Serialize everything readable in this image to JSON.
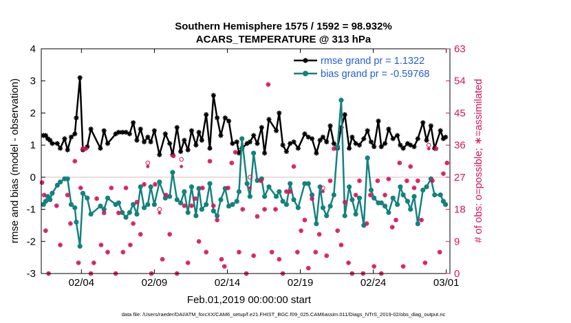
{
  "chart_data": {
    "type": "line",
    "title": "Southern Hemisphere 1575 / 1592 = 98.932%",
    "subtitle": "ACARS_TEMPERATURE @ 313 hPa",
    "xlabel": "Feb.01,2019 00:00:00 start",
    "ylabel": "rmse and bias (model - observation)",
    "ylabel_right": "# of obs: o=possible; ∗=assimilated",
    "footnote": "data file: /Users/raeder/DAI/ATM_forcXX/CAM6_setup/f.e21.FHIST_BGC.f09_025.CAM6assim.011/Diags_NTrS_2019-02/obs_diag_output.nc",
    "xlim": [
      1,
      29
    ],
    "ylim": [
      -3,
      4
    ],
    "ylim_right": [
      0,
      63
    ],
    "x_ticks": [
      3.75,
      8.75,
      13.75,
      18.75,
      23.75,
      28.75
    ],
    "x_tick_labels": [
      "02/04",
      "02/09",
      "02/14",
      "02/19",
      "02/24",
      "03/01"
    ],
    "y_ticks": [
      -3,
      -2,
      -1,
      0,
      1,
      2,
      3,
      4
    ],
    "y_tick_labels": [
      "-3",
      "-2",
      "-1",
      "0",
      "1",
      "2",
      "3",
      "4"
    ],
    "y_right_ticks": [
      0,
      9,
      18,
      27,
      36,
      45,
      54,
      63
    ],
    "y_right_tick_labels": [
      "0",
      "9",
      "18",
      "27",
      "36",
      "45",
      "54",
      "63"
    ],
    "colors": {
      "rmse": "#000000",
      "bias": "#13827f",
      "obs": "#d4145a",
      "zero_line": "#e0b8b8"
    },
    "series": [
      {
        "name": "rmse grand pr = 1.1322",
        "marker": "asterisk",
        "x": [
          1.15,
          1.3,
          1.45,
          1.6,
          1.75,
          2.1,
          2.3,
          2.6,
          2.8,
          3.05,
          3.3,
          3.4,
          3.65,
          3.85,
          4.15,
          4.4,
          5.05,
          5.3,
          5.55,
          6.1,
          6.3,
          6.55,
          6.8,
          7.05,
          7.3,
          7.55,
          7.8,
          8.05,
          8.3,
          8.5,
          8.75,
          9.1,
          9.5,
          9.8,
          10.0,
          10.3,
          10.55,
          10.8,
          11.05,
          11.3,
          11.6,
          11.8,
          12.0,
          12.3,
          12.55,
          12.8,
          13.05,
          13.3,
          13.6,
          13.85,
          14.1,
          14.4,
          14.55,
          14.75,
          15.1,
          15.3,
          15.55,
          15.8,
          16.1,
          16.3,
          16.6,
          17.1,
          17.3,
          17.55,
          17.8,
          18.05,
          18.3,
          18.6,
          19.05,
          19.3,
          19.55,
          19.85,
          20.1,
          20.3,
          20.55,
          20.8,
          21.05,
          21.3,
          21.55,
          21.8,
          22.1,
          22.3,
          22.55,
          22.8,
          23.1,
          23.35,
          23.6,
          23.8,
          24.1,
          24.3,
          24.55,
          24.8,
          25.1,
          25.4,
          25.6,
          25.8,
          26.1,
          26.3,
          26.55,
          26.8,
          27.15,
          27.4,
          27.7,
          27.95,
          28.35,
          28.55,
          28.7
        ],
        "y": [
          1.3,
          1.3,
          1.2,
          1.15,
          1.05,
          1.05,
          0.9,
          1.2,
          0.85,
          1.25,
          1.35,
          1.85,
          3.1,
          0.85,
          0.95,
          1.5,
          0.9,
          1.45,
          1.05,
          1.35,
          1.4,
          1.4,
          1.4,
          1.35,
          1.7,
          1.15,
          1.5,
          1.1,
          1.25,
          1.1,
          1.45,
          0.7,
          1.35,
          1.05,
          0.7,
          1.55,
          0.8,
          1.15,
          0.85,
          1.45,
          1.0,
          1.4,
          1.15,
          1.95,
          0.9,
          2.55,
          1.85,
          1.3,
          1.85,
          1.75,
          1.05,
          1.1,
          0.75,
          0.9,
          1.05,
          1.1,
          1.3,
          1.05,
          1.55,
          0.75,
          1.8,
          1.45,
          2.0,
          1.0,
          0.8,
          1.05,
          1.1,
          0.9,
          1.35,
          1.25,
          1.2,
          0.75,
          1.15,
          1.25,
          1.1,
          1.6,
          1.05,
          0.9,
          1.55,
          1.95,
          0.9,
          1.25,
          1.05,
          1.0,
          1.2,
          1.45,
          1.1,
          0.95,
          1.75,
          0.95,
          1.05,
          1.5,
          1.2,
          1.3,
          1.0,
          0.9,
          1.05,
          1.0,
          0.95,
          1.2,
          1.7,
          1.15,
          1.6,
          0.9,
          1.45,
          1.2,
          1.25
        ]
      },
      {
        "name": "bias grand pr = -0.59768",
        "marker": "dot",
        "x": [
          1.15,
          1.3,
          1.45,
          1.6,
          1.75,
          2.1,
          2.3,
          2.6,
          2.8,
          3.05,
          3.3,
          3.4,
          3.65,
          3.85,
          4.15,
          4.4,
          5.05,
          5.3,
          5.55,
          6.1,
          6.3,
          6.55,
          6.8,
          7.05,
          7.3,
          7.55,
          7.8,
          8.05,
          8.3,
          8.5,
          8.75,
          9.1,
          9.5,
          9.8,
          10.0,
          10.3,
          10.55,
          10.8,
          11.05,
          11.3,
          11.6,
          11.8,
          12.0,
          12.3,
          12.55,
          12.8,
          13.05,
          13.3,
          13.6,
          13.85,
          14.1,
          14.4,
          14.55,
          14.75,
          15.1,
          15.3,
          15.55,
          15.8,
          16.1,
          16.3,
          16.6,
          17.1,
          17.3,
          17.55,
          17.8,
          18.05,
          18.3,
          18.6,
          19.05,
          19.3,
          19.55,
          19.85,
          20.1,
          20.3,
          20.55,
          20.8,
          21.05,
          21.3,
          21.55,
          21.8,
          22.1,
          22.3,
          22.55,
          22.8,
          23.1,
          23.35,
          23.6,
          23.8,
          24.1,
          24.3,
          24.55,
          24.8,
          25.1,
          25.4,
          25.6,
          25.8,
          26.1,
          26.3,
          26.55,
          26.8,
          27.15,
          27.4,
          27.7,
          27.95,
          28.35,
          28.55,
          28.7
        ],
        "y": [
          -0.85,
          -0.75,
          -0.6,
          -0.7,
          -0.5,
          -0.25,
          -0.15,
          -0.05,
          -0.05,
          -0.85,
          -0.95,
          -1.4,
          -2.15,
          -0.5,
          -0.65,
          -1.15,
          -0.9,
          -1.0,
          -0.65,
          -0.85,
          -0.8,
          -1.1,
          -1.25,
          -1.1,
          -0.85,
          -1.15,
          -0.3,
          -0.95,
          -0.85,
          -0.3,
          -0.85,
          -0.15,
          -0.65,
          -0.6,
          0.15,
          -0.7,
          -0.8,
          -0.45,
          -1.1,
          -0.3,
          -1.2,
          -0.35,
          -1.0,
          -0.85,
          -0.2,
          -1.05,
          -1.2,
          -0.7,
          -0.35,
          -0.9,
          -0.85,
          -0.75,
          -0.45,
          1.2,
          -0.2,
          -0.6,
          0.75,
          -0.1,
          -0.05,
          -0.6,
          -0.3,
          -0.6,
          -0.45,
          -0.75,
          -0.85,
          -0.2,
          -0.7,
          -0.95,
          -0.2,
          -0.2,
          -0.55,
          -1.45,
          -0.3,
          -0.95,
          -1.2,
          -0.9,
          -0.55,
          0.95,
          2.4,
          -1.2,
          -0.3,
          -0.7,
          -1.15,
          -0.65,
          -1.5,
          0.6,
          -0.4,
          -0.65,
          -0.8,
          -0.8,
          -0.9,
          -1.1,
          -0.65,
          -0.85,
          -0.3,
          -0.55,
          -0.75,
          -1.0,
          -0.6,
          -1.45,
          -0.4,
          -0.3,
          -0.05,
          -0.55,
          -0.55,
          -0.75,
          -0.85
        ]
      }
    ],
    "obs_possible": {
      "x": [
        1.05,
        1.2,
        1.3,
        1.5,
        2.05,
        2.3,
        2.8,
        3.0,
        3.3,
        3.55,
        3.7,
        3.85,
        4.05,
        4.4,
        4.6,
        4.8,
        5.1,
        5.3,
        5.55,
        5.8,
        6.1,
        6.3,
        6.6,
        6.8,
        7.1,
        7.3,
        7.55,
        7.8,
        8.05,
        8.3,
        8.55,
        8.8,
        9.1,
        9.3,
        9.55,
        9.8,
        10.05,
        10.3,
        10.6,
        10.8,
        11.05,
        11.3,
        11.55,
        11.8,
        12.05,
        12.3,
        12.55,
        12.8,
        13.05,
        13.35,
        13.55,
        13.8,
        14.05,
        14.3,
        14.55,
        14.8,
        15.05,
        15.3,
        15.55,
        15.8,
        16.05,
        16.3,
        16.55,
        16.8,
        17.05,
        17.3,
        17.55,
        17.8,
        18.05,
        18.3,
        18.55,
        18.8,
        19.05,
        19.3,
        19.55,
        19.8,
        20.05,
        20.3,
        20.55,
        20.8,
        21.05,
        21.3,
        21.55,
        21.8,
        22.05,
        22.3,
        22.55,
        22.8,
        23.05,
        23.3,
        23.55,
        23.8,
        24.05,
        24.3,
        24.55,
        24.8,
        25.05,
        25.3,
        25.55,
        25.8,
        26.05,
        26.3,
        26.55,
        26.8,
        27.05,
        27.3,
        27.55,
        27.8,
        28.05,
        28.3,
        28.55,
        28.8
      ],
      "y": [
        25.5,
        22,
        12,
        0,
        19,
        8,
        22,
        14,
        31.5,
        3,
        24,
        35,
        35,
        0,
        3,
        21,
        8,
        17,
        6,
        24,
        0,
        17,
        6,
        24,
        8,
        14,
        20,
        11,
        25,
        31,
        0,
        25,
        18,
        4,
        22,
        11,
        33,
        0,
        32,
        19,
        3,
        19,
        21,
        9,
        24,
        6,
        31.5,
        19,
        15,
        4,
        2,
        24,
        31,
        34,
        6,
        18,
        0,
        27,
        5,
        16,
        26,
        18,
        53,
        6,
        18,
        4,
        0,
        23,
        23,
        30,
        6,
        12,
        15,
        1.5,
        21,
        6,
        11,
        24,
        5,
        26,
        35,
        12,
        8,
        20,
        3,
        0,
        22,
        26,
        0,
        14,
        22,
        2,
        26,
        0,
        22,
        26.5,
        13,
        15,
        31,
        2,
        26,
        30,
        24,
        26,
        15,
        3,
        36,
        26,
        35,
        6,
        28,
        31
      ]
    },
    "obs_assimilated": {
      "x": [
        1.05,
        1.2,
        1.3,
        1.5,
        2.05,
        2.3,
        2.8,
        3.0,
        3.3,
        3.55,
        3.7,
        3.85,
        4.05,
        4.4,
        4.6,
        4.8,
        5.1,
        5.3,
        5.55,
        5.8,
        6.1,
        6.3,
        6.6,
        6.8,
        7.1,
        7.3,
        7.55,
        7.8,
        8.05,
        8.3,
        8.55,
        8.8,
        9.1,
        9.3,
        9.55,
        9.8,
        10.05,
        10.3,
        10.6,
        10.8,
        11.05,
        11.3,
        11.55,
        11.8,
        12.05,
        12.3,
        12.55,
        12.8,
        13.05,
        13.35,
        13.55,
        13.8,
        14.05,
        14.3,
        14.55,
        14.8,
        15.05,
        15.3,
        15.55,
        15.8,
        16.05,
        16.3,
        16.55,
        16.8,
        17.05,
        17.3,
        17.55,
        17.8,
        18.05,
        18.3,
        18.55,
        18.8,
        19.05,
        19.3,
        19.55,
        19.8,
        20.05,
        20.3,
        20.55,
        20.8,
        21.05,
        21.3,
        21.55,
        21.8,
        22.05,
        22.3,
        22.55,
        22.8,
        23.05,
        23.3,
        23.55,
        23.8,
        24.05,
        24.3,
        24.55,
        24.8,
        25.05,
        25.3,
        25.55,
        25.8,
        26.05,
        26.3,
        26.55,
        26.8,
        27.05,
        27.3,
        27.55,
        27.8,
        28.05,
        28.3,
        28.55,
        28.8
      ],
      "y": [
        25.5,
        22,
        12,
        0,
        19,
        8,
        22,
        14,
        31.5,
        3,
        24,
        35,
        35,
        0,
        3,
        21,
        8,
        17,
        6,
        24,
        0,
        17,
        6,
        24,
        8,
        14,
        20,
        11,
        25,
        30,
        0,
        25,
        17,
        4,
        22,
        11,
        33,
        0,
        30,
        19,
        3,
        19,
        21,
        9,
        24,
        6,
        31.5,
        19,
        15,
        4,
        2,
        24,
        31,
        34,
        6,
        18,
        0,
        24,
        5,
        16,
        26,
        18,
        53,
        6,
        18,
        4,
        0,
        23,
        23,
        30,
        6,
        12,
        15,
        1.5,
        21,
        6,
        11,
        23,
        5,
        26,
        35,
        12,
        8,
        20,
        3,
        0,
        22,
        26,
        0,
        14,
        22,
        2,
        26,
        0,
        22,
        26.5,
        13,
        15,
        31,
        2,
        26,
        30,
        24,
        26,
        15,
        3,
        35,
        26,
        35,
        6,
        28,
        31
      ]
    }
  }
}
